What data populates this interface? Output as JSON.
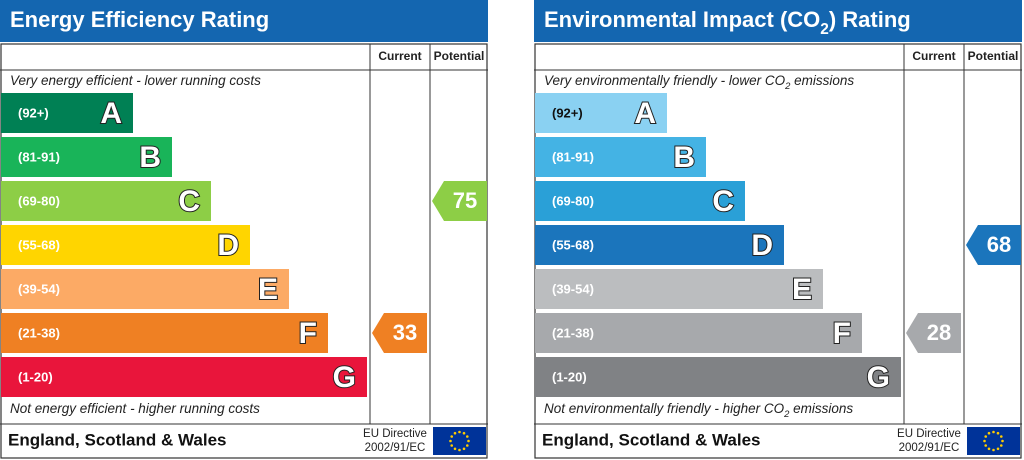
{
  "panels": [
    {
      "title": [
        "Energy Efficiency Rating"
      ],
      "columns": [
        "Current",
        "Potential"
      ],
      "top_note": [
        "Very energy efficient - lower running costs"
      ],
      "bottom_note": [
        "Not energy efficient - higher running costs"
      ],
      "bands": [
        {
          "range": "(92+)",
          "letter": "A",
          "color": "#008054",
          "text": "#ffffff"
        },
        {
          "range": "(81-91)",
          "letter": "B",
          "color": "#19b459",
          "text": "#ffffff"
        },
        {
          "range": "(69-80)",
          "letter": "C",
          "color": "#8dce46",
          "text": "#ffffff"
        },
        {
          "range": "(55-68)",
          "letter": "D",
          "color": "#ffd500",
          "text": "#ffffff"
        },
        {
          "range": "(39-54)",
          "letter": "E",
          "color": "#fcaa65",
          "text": "#ffffff"
        },
        {
          "range": "(21-38)",
          "letter": "F",
          "color": "#ef8023",
          "text": "#ffffff"
        },
        {
          "range": "(1-20)",
          "letter": "G",
          "color": "#e9153b",
          "text": "#ffffff"
        }
      ],
      "current": 33,
      "potential": 75,
      "footer": "England, Scotland & Wales",
      "directive": [
        "EU Directive",
        "2002/91/EC"
      ]
    },
    {
      "title": [
        "Environmental Impact (CO",
        "2",
        ") Rating"
      ],
      "columns": [
        "Current",
        "Potential"
      ],
      "top_note": [
        "Very environmentally friendly - lower CO",
        "2",
        " emissions"
      ],
      "bottom_note": [
        "Not environmentally friendly - higher CO",
        "2",
        " emissions"
      ],
      "bands": [
        {
          "range": "(92+)",
          "letter": "A",
          "color": "#8ad1f2",
          "text": "#111111"
        },
        {
          "range": "(81-91)",
          "letter": "B",
          "color": "#44b3e4",
          "text": "#ffffff"
        },
        {
          "range": "(69-80)",
          "letter": "C",
          "color": "#2aa0d7",
          "text": "#ffffff"
        },
        {
          "range": "(55-68)",
          "letter": "D",
          "color": "#1b75bc",
          "text": "#ffffff"
        },
        {
          "range": "(39-54)",
          "letter": "E",
          "color": "#bbbdbf",
          "text": "#ffffff"
        },
        {
          "range": "(21-38)",
          "letter": "F",
          "color": "#a7a9ac",
          "text": "#ffffff"
        },
        {
          "range": "(1-20)",
          "letter": "G",
          "color": "#808285",
          "text": "#ffffff"
        }
      ],
      "current": 28,
      "potential": 68,
      "footer": "England, Scotland & Wales",
      "directive": [
        "EU Directive",
        "2002/91/EC"
      ]
    }
  ]
}
